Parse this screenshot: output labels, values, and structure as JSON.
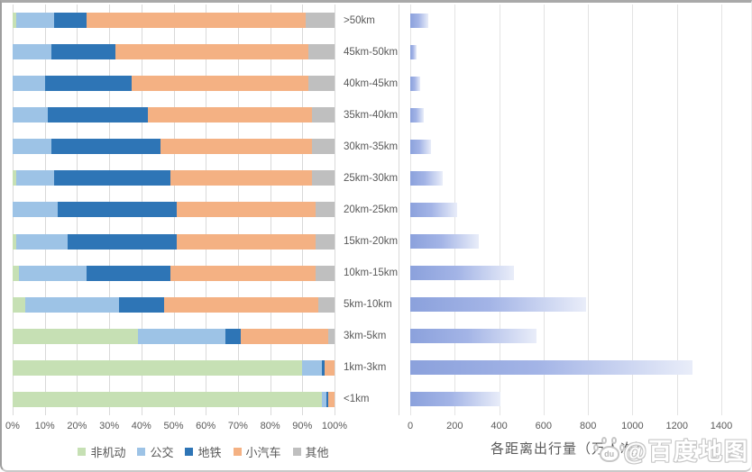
{
  "chart_data": [
    {
      "type": "bar",
      "orientation": "horizontal",
      "stacked_percent": true,
      "title": "",
      "categories": [
        ">50km",
        "45km-50km",
        "40km-45km",
        "35km-40km",
        "30km-35km",
        "25km-30km",
        "20km-25km",
        "15km-20km",
        "10km-15km",
        "5km-10km",
        "3km-5km",
        "1km-3km",
        "<1km"
      ],
      "series": [
        {
          "name": "非机动",
          "key": "non-motorized",
          "color": "#C6E0B4",
          "values": [
            1,
            0,
            0,
            0,
            0,
            1,
            0,
            1,
            2,
            4,
            39,
            90,
            96
          ]
        },
        {
          "name": "公交",
          "key": "bus",
          "color": "#9DC3E6",
          "values": [
            12,
            12,
            10,
            11,
            12,
            12,
            14,
            16,
            21,
            29,
            27,
            6,
            1.5
          ]
        },
        {
          "name": "地铁",
          "key": "metro",
          "color": "#2E75B6",
          "values": [
            10,
            20,
            27,
            31,
            34,
            36,
            37,
            34,
            26,
            14,
            5,
            1,
            0.5
          ]
        },
        {
          "name": "小汽车",
          "key": "car",
          "color": "#F4B183",
          "values": [
            68,
            60,
            55,
            51,
            47,
            44,
            43,
            43,
            45,
            48,
            27,
            3,
            2
          ]
        },
        {
          "name": "其他",
          "key": "other",
          "color": "#BFBFBF",
          "values": [
            9,
            8,
            8,
            7,
            7,
            7,
            6,
            6,
            6,
            5,
            2,
            0,
            0
          ]
        }
      ],
      "x_ticks": [
        "0%",
        "10%",
        "20%",
        "30%",
        "40%",
        "50%",
        "60%",
        "70%",
        "80%",
        "90%",
        "100%"
      ],
      "xlim": [
        0,
        100
      ],
      "xlabel": "",
      "grid": true,
      "legend_position": "bottom"
    },
    {
      "type": "bar",
      "orientation": "horizontal",
      "title": "",
      "categories": [
        ">50km",
        "45km-50km",
        "40km-45km",
        "35km-40km",
        "30km-35km",
        "25km-30km",
        "20km-25km",
        "15km-20km",
        "10km-15km",
        "5km-10km",
        "3km-5km",
        "1km-3km",
        "<1km"
      ],
      "values": [
        80,
        30,
        45,
        62,
        93,
        145,
        210,
        310,
        465,
        790,
        570,
        1270,
        405
      ],
      "x_ticks": [
        "0",
        "200",
        "400",
        "600",
        "800",
        "1000",
        "1200",
        "1400"
      ],
      "xlim": [
        0,
        1400
      ],
      "xlabel": "各距离出行量（万人次）",
      "grid": true,
      "bar_gradient": [
        "#8BA1DC",
        "#A3B4E6",
        "#E9EDF9"
      ]
    }
  ],
  "watermark": {
    "text": "@百度地图",
    "paw_text": "du"
  },
  "colors": {
    "grid_left": "#D9D9D9",
    "grid_right": "#E3E3E3",
    "axis_text": "#595959",
    "divider": "#D9D9D9"
  }
}
